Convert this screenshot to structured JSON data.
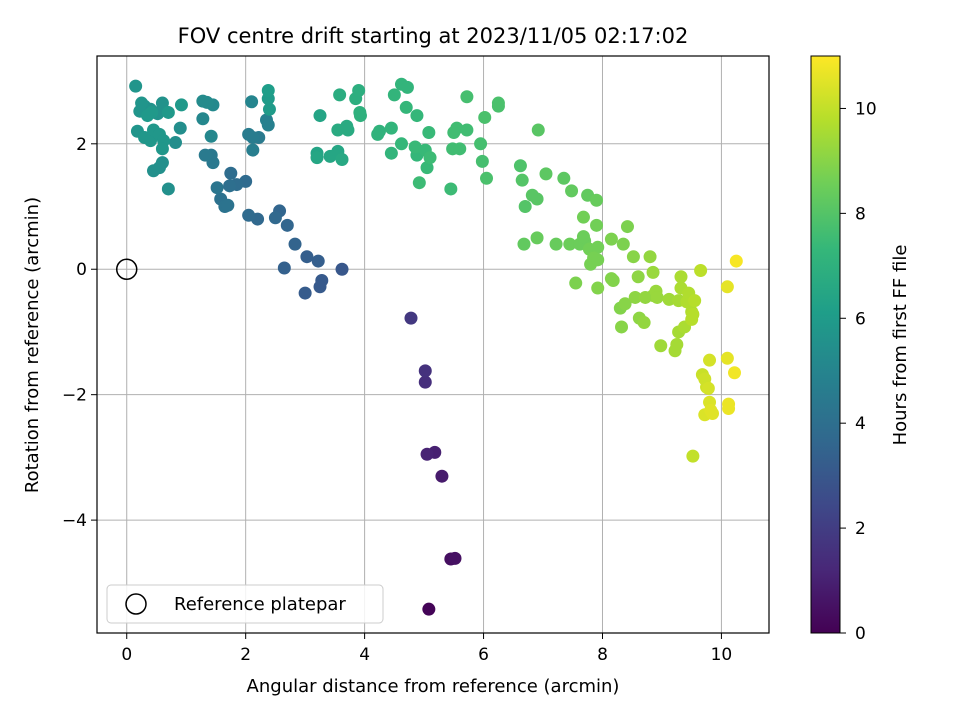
{
  "chart_data": {
    "type": "scatter",
    "title": "FOV centre drift starting at 2023/11/05 02:17:02",
    "xlabel": "Angular distance from reference (arcmin)",
    "ylabel": "Rotation from reference (arcmin)",
    "xlim": [
      -0.5,
      10.8
    ],
    "ylim": [
      -5.8,
      3.4
    ],
    "xticks": [
      0,
      2,
      4,
      6,
      8,
      10
    ],
    "yticks": [
      -4,
      -2,
      0,
      2
    ],
    "grid": true,
    "colormap": "viridis",
    "colorbar": {
      "label": "Hours from first FF file",
      "range": [
        0,
        11
      ],
      "ticks": [
        0,
        2,
        4,
        6,
        8,
        10
      ],
      "colors": [
        "#440154",
        "#482878",
        "#3e4989",
        "#31688e",
        "#26828e",
        "#1f9e89",
        "#35b779",
        "#6ece58",
        "#b5de2b",
        "#fde725"
      ]
    },
    "legend": {
      "label": "Reference platepar",
      "position": "bottom-left"
    },
    "reference_point": {
      "x": 0,
      "y": 0
    },
    "series": [
      {
        "points": [
          [
            5.08,
            -5.42,
            0.1
          ],
          [
            5.45,
            -4.62,
            0.4
          ],
          [
            5.52,
            -4.61,
            0.5
          ],
          [
            5.3,
            -3.3,
            0.8
          ],
          [
            5.18,
            -2.92,
            1.0
          ],
          [
            5.05,
            -2.95,
            1.1
          ],
          [
            5.02,
            -1.8,
            1.5
          ],
          [
            5.02,
            -1.62,
            1.6
          ],
          [
            4.78,
            -0.78,
            1.8
          ],
          [
            3.62,
            0.0,
            3.0
          ],
          [
            3.28,
            -0.18,
            3.1
          ],
          [
            3.25,
            -0.28,
            3.1
          ],
          [
            3.0,
            -0.38,
            3.2
          ],
          [
            3.22,
            0.13,
            3.3
          ],
          [
            3.03,
            0.2,
            3.3
          ],
          [
            2.65,
            0.02,
            3.4
          ],
          [
            2.83,
            0.4,
            3.5
          ],
          [
            2.7,
            0.7,
            3.6
          ],
          [
            2.57,
            0.93,
            3.6
          ],
          [
            2.5,
            0.82,
            3.7
          ],
          [
            2.2,
            0.8,
            3.7
          ],
          [
            2.05,
            0.86,
            3.8
          ],
          [
            2.0,
            1.4,
            3.8
          ],
          [
            1.85,
            1.35,
            3.9
          ],
          [
            1.75,
            1.53,
            3.9
          ],
          [
            1.73,
            1.33,
            4.0
          ],
          [
            1.58,
            1.12,
            4.1
          ],
          [
            1.65,
            1.0,
            4.2
          ],
          [
            1.7,
            1.02,
            4.2
          ],
          [
            1.52,
            1.3,
            4.3
          ],
          [
            1.45,
            1.7,
            4.4
          ],
          [
            1.42,
            1.82,
            4.4
          ],
          [
            1.32,
            1.82,
            4.5
          ],
          [
            2.22,
            2.1,
            4.5
          ],
          [
            2.05,
            2.15,
            4.6
          ],
          [
            2.12,
            2.1,
            4.6
          ],
          [
            2.12,
            1.9,
            4.7
          ],
          [
            2.35,
            2.38,
            4.8
          ],
          [
            2.38,
            2.3,
            4.8
          ],
          [
            2.1,
            2.67,
            5.0
          ],
          [
            1.42,
            2.12,
            5.1
          ],
          [
            1.28,
            2.4,
            5.1
          ],
          [
            1.45,
            2.62,
            5.2
          ],
          [
            1.35,
            2.66,
            5.3
          ],
          [
            1.28,
            2.68,
            5.3
          ],
          [
            0.9,
            2.25,
            5.4
          ],
          [
            0.82,
            2.02,
            5.4
          ],
          [
            0.7,
            1.28,
            5.5
          ],
          [
            0.6,
            1.7,
            5.5
          ],
          [
            0.55,
            1.62,
            5.5
          ],
          [
            0.45,
            1.57,
            5.5
          ],
          [
            0.6,
            2.65,
            5.6
          ],
          [
            0.6,
            2.55,
            5.6
          ],
          [
            0.52,
            2.48,
            5.6
          ],
          [
            0.4,
            2.55,
            5.6
          ],
          [
            0.3,
            2.6,
            5.6
          ],
          [
            0.25,
            2.65,
            5.7
          ],
          [
            0.22,
            2.52,
            5.7
          ],
          [
            0.15,
            2.92,
            5.7
          ],
          [
            0.18,
            2.2,
            5.7
          ],
          [
            0.3,
            2.1,
            5.8
          ],
          [
            0.4,
            2.05,
            5.8
          ],
          [
            0.45,
            2.22,
            5.8
          ],
          [
            0.55,
            2.15,
            5.8
          ],
          [
            0.62,
            2.05,
            5.8
          ],
          [
            0.6,
            1.92,
            5.8
          ],
          [
            0.92,
            2.62,
            5.9
          ],
          [
            0.7,
            2.5,
            5.9
          ],
          [
            0.35,
            2.45,
            5.9
          ],
          [
            0.42,
            2.5,
            5.9
          ],
          [
            2.4,
            2.55,
            6.0
          ],
          [
            2.38,
            2.72,
            6.0
          ],
          [
            2.38,
            2.85,
            6.1
          ],
          [
            3.25,
            2.45,
            6.4
          ],
          [
            3.2,
            1.85,
            6.4
          ],
          [
            3.2,
            1.78,
            6.5
          ],
          [
            3.42,
            1.8,
            6.5
          ],
          [
            3.55,
            1.88,
            6.5
          ],
          [
            3.62,
            1.75,
            6.6
          ],
          [
            3.55,
            2.22,
            6.7
          ],
          [
            3.7,
            2.28,
            6.7
          ],
          [
            3.72,
            2.22,
            6.7
          ],
          [
            3.58,
            2.78,
            6.8
          ],
          [
            3.85,
            2.72,
            6.9
          ],
          [
            3.9,
            2.85,
            6.9
          ],
          [
            3.93,
            2.45,
            7.0
          ],
          [
            3.92,
            2.5,
            7.0
          ],
          [
            4.22,
            2.15,
            7.1
          ],
          [
            4.25,
            2.2,
            7.1
          ],
          [
            4.45,
            1.85,
            7.2
          ],
          [
            4.45,
            2.25,
            7.2
          ],
          [
            4.62,
            2.95,
            7.2
          ],
          [
            4.72,
            2.9,
            7.2
          ],
          [
            4.5,
            2.78,
            7.2
          ],
          [
            4.62,
            2.0,
            7.3
          ],
          [
            4.7,
            2.58,
            7.3
          ],
          [
            4.88,
            2.45,
            7.3
          ],
          [
            4.88,
            1.82,
            7.3
          ],
          [
            4.85,
            1.95,
            7.4
          ],
          [
            5.02,
            1.9,
            7.4
          ],
          [
            5.05,
            1.62,
            7.4
          ],
          [
            5.08,
            2.18,
            7.4
          ],
          [
            5.1,
            1.78,
            7.5
          ],
          [
            4.92,
            1.38,
            7.5
          ],
          [
            5.45,
            1.28,
            7.5
          ],
          [
            5.48,
            1.92,
            7.6
          ],
          [
            5.55,
            2.25,
            7.6
          ],
          [
            5.72,
            2.22,
            7.6
          ],
          [
            5.6,
            1.92,
            7.6
          ],
          [
            5.5,
            2.18,
            7.6
          ],
          [
            5.72,
            2.75,
            7.7
          ],
          [
            5.95,
            2.0,
            7.7
          ],
          [
            5.98,
            1.72,
            7.7
          ],
          [
            6.02,
            2.42,
            7.8
          ],
          [
            6.05,
            1.45,
            7.8
          ],
          [
            6.25,
            2.6,
            7.8
          ],
          [
            6.25,
            2.65,
            7.8
          ],
          [
            6.62,
            1.65,
            7.9
          ],
          [
            6.65,
            1.42,
            8.0
          ],
          [
            6.7,
            1.0,
            8.0
          ],
          [
            6.82,
            1.18,
            8.1
          ],
          [
            6.9,
            1.12,
            8.1
          ],
          [
            6.92,
            2.22,
            8.1
          ],
          [
            7.05,
            1.52,
            8.2
          ],
          [
            7.35,
            1.45,
            8.2
          ],
          [
            7.48,
            1.25,
            8.3
          ],
          [
            7.75,
            1.18,
            8.3
          ],
          [
            7.9,
            1.1,
            8.4
          ],
          [
            6.68,
            0.4,
            8.3
          ],
          [
            6.9,
            0.5,
            8.4
          ],
          [
            7.22,
            0.4,
            8.4
          ],
          [
            7.45,
            0.4,
            8.5
          ],
          [
            7.62,
            0.4,
            8.5
          ],
          [
            7.7,
            0.45,
            8.5
          ],
          [
            7.68,
            0.52,
            8.5
          ],
          [
            7.68,
            0.83,
            8.6
          ],
          [
            7.78,
            0.32,
            8.6
          ],
          [
            7.92,
            0.35,
            8.6
          ],
          [
            7.9,
            0.7,
            8.6
          ],
          [
            7.85,
            0.18,
            8.7
          ],
          [
            7.8,
            0.08,
            8.7
          ],
          [
            7.92,
            0.15,
            8.7
          ],
          [
            8.15,
            0.48,
            8.8
          ],
          [
            8.35,
            0.4,
            8.8
          ],
          [
            8.42,
            0.68,
            8.8
          ],
          [
            7.55,
            -0.22,
            8.8
          ],
          [
            7.92,
            -0.3,
            8.9
          ],
          [
            8.15,
            -0.15,
            8.9
          ],
          [
            8.18,
            -0.18,
            8.9
          ],
          [
            8.3,
            -0.62,
            8.9
          ],
          [
            8.38,
            -0.55,
            9.0
          ],
          [
            8.32,
            -0.92,
            9.0
          ],
          [
            8.52,
            0.2,
            9.0
          ],
          [
            8.55,
            -0.45,
            9.1
          ],
          [
            8.6,
            -0.12,
            9.1
          ],
          [
            8.62,
            -0.78,
            9.1
          ],
          [
            8.7,
            -0.85,
            9.2
          ],
          [
            8.72,
            -0.45,
            9.2
          ],
          [
            8.8,
            0.2,
            9.2
          ],
          [
            8.85,
            -0.42,
            9.2
          ],
          [
            8.85,
            -0.05,
            9.3
          ],
          [
            8.9,
            -0.35,
            9.3
          ],
          [
            8.92,
            -0.45,
            9.3
          ],
          [
            8.98,
            -1.22,
            9.4
          ],
          [
            9.12,
            -0.48,
            9.4
          ],
          [
            9.22,
            -1.3,
            9.5
          ],
          [
            9.25,
            -1.2,
            9.5
          ],
          [
            9.28,
            -1.0,
            9.5
          ],
          [
            9.28,
            -0.5,
            9.5
          ],
          [
            9.32,
            -0.12,
            9.6
          ],
          [
            9.32,
            -0.3,
            9.6
          ],
          [
            9.38,
            -0.92,
            9.6
          ],
          [
            9.42,
            -0.52,
            9.7
          ],
          [
            9.45,
            -0.38,
            9.7
          ],
          [
            9.5,
            -0.68,
            9.7
          ],
          [
            9.5,
            -0.8,
            9.8
          ],
          [
            9.52,
            -0.72,
            9.8
          ],
          [
            9.55,
            -0.5,
            9.8
          ],
          [
            9.65,
            -0.02,
            9.9
          ],
          [
            9.52,
            -2.98,
            10.0
          ],
          [
            9.68,
            -1.68,
            10.1
          ],
          [
            9.72,
            -1.75,
            10.2
          ],
          [
            9.75,
            -1.88,
            10.2
          ],
          [
            9.78,
            -1.9,
            10.3
          ],
          [
            9.8,
            -1.45,
            10.3
          ],
          [
            9.8,
            -2.12,
            10.4
          ],
          [
            9.72,
            -2.32,
            10.4
          ],
          [
            9.82,
            -2.25,
            10.5
          ],
          [
            9.85,
            -2.3,
            10.5
          ],
          [
            10.1,
            -0.28,
            10.6
          ],
          [
            10.1,
            -1.42,
            10.6
          ],
          [
            10.12,
            -2.15,
            10.7
          ],
          [
            10.12,
            -2.22,
            10.7
          ],
          [
            10.22,
            -1.65,
            10.8
          ],
          [
            10.25,
            0.13,
            10.9
          ]
        ]
      }
    ]
  }
}
